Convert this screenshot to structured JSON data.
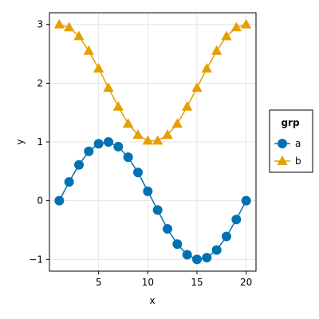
{
  "chart_data": {
    "type": "line",
    "title": "",
    "xlabel": "x",
    "ylabel": "y",
    "xlim": [
      0,
      21
    ],
    "ylim": [
      -1.2,
      3.2
    ],
    "xticks": [
      5,
      10,
      15,
      20
    ],
    "yticks": [
      -1,
      0,
      1,
      2,
      3
    ],
    "xtick_labels": [
      "5",
      "10",
      "15",
      "20"
    ],
    "ytick_labels": [
      "−1",
      "0",
      "1",
      "2",
      "3"
    ],
    "grid": true,
    "legend": {
      "title": "grp",
      "placement": "right"
    },
    "x": [
      1,
      2,
      3,
      4,
      5,
      6,
      7,
      8,
      9,
      10,
      11,
      12,
      13,
      14,
      15,
      16,
      17,
      18,
      19,
      20
    ],
    "series": [
      {
        "name": "a",
        "color": "#0072b2",
        "marker": "circle",
        "values": [
          0.0,
          0.32,
          0.61,
          0.84,
          0.97,
          1.0,
          0.92,
          0.74,
          0.48,
          0.16,
          -0.16,
          -0.48,
          -0.74,
          -0.92,
          -1.0,
          -0.97,
          -0.84,
          -0.61,
          -0.32,
          0.0
        ]
      },
      {
        "name": "b",
        "color": "#e69f00",
        "marker": "triangle",
        "values": [
          3.0,
          2.95,
          2.8,
          2.55,
          2.25,
          1.92,
          1.6,
          1.31,
          1.12,
          1.02,
          1.02,
          1.12,
          1.31,
          1.6,
          1.92,
          2.25,
          2.55,
          2.8,
          2.95,
          3.0
        ]
      }
    ]
  }
}
